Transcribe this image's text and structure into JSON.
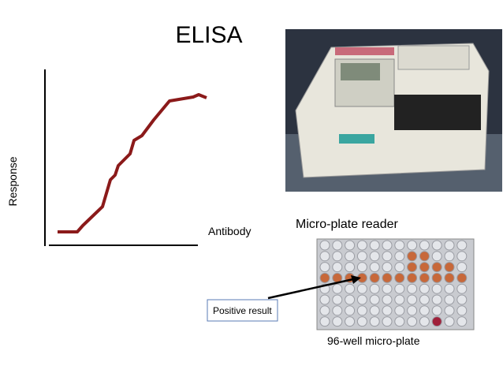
{
  "slide": {
    "title": "ELISA",
    "graph": {
      "y_label": "Response",
      "x_label": "Antibody"
    },
    "reader_caption": "Micro-plate reader",
    "plate": {
      "callout": "Positive result",
      "caption": "96-well micro-plate"
    }
  }
}
